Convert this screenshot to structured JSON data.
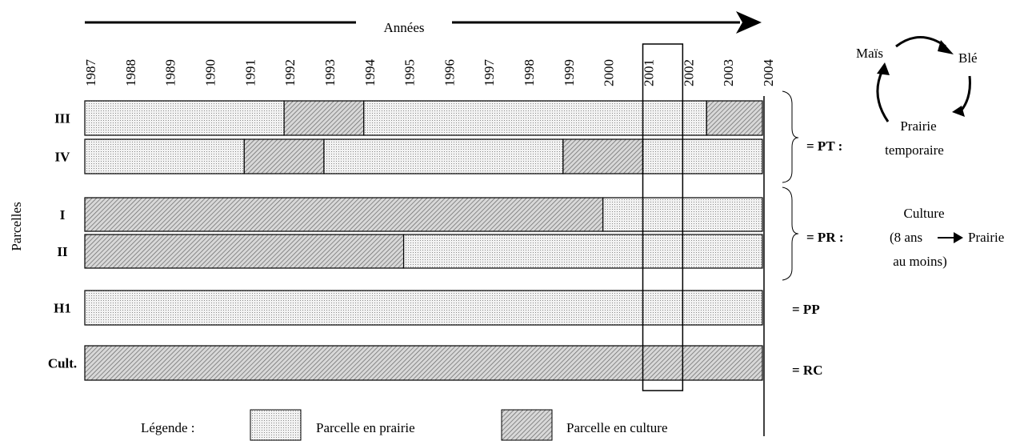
{
  "axis_title": "Années",
  "years": [
    "1987",
    "1988",
    "1989",
    "1990",
    "1991",
    "1992",
    "1993",
    "1994",
    "1995",
    "1996",
    "1997",
    "1998",
    "1999",
    "2000",
    "2001",
    "2002",
    "2003",
    "2004"
  ],
  "span": [
    1987,
    2004
  ],
  "highlight": [
    2001,
    2002
  ],
  "y_label": "Parcelles",
  "rows": [
    {
      "label": "III",
      "segments": [
        {
          "start": 1987,
          "end": 1992,
          "legend": 0
        },
        {
          "start": 1992,
          "end": 1994,
          "legend": 1
        },
        {
          "start": 1994,
          "end": 2002.6,
          "legend": 0
        },
        {
          "start": 2002.6,
          "end": 2004,
          "legend": 1
        }
      ]
    },
    {
      "label": "IV",
      "segments": [
        {
          "start": 1987,
          "end": 1991,
          "legend": 0
        },
        {
          "start": 1991,
          "end": 1993,
          "legend": 1
        },
        {
          "start": 1993,
          "end": 1999,
          "legend": 0
        },
        {
          "start": 1999,
          "end": 2001,
          "legend": 1
        },
        {
          "start": 2001,
          "end": 2004,
          "legend": 0
        }
      ]
    },
    {
      "label": "I",
      "segments": [
        {
          "start": 1987,
          "end": 2000,
          "legend": 1
        },
        {
          "start": 2000,
          "end": 2004,
          "legend": 0
        }
      ]
    },
    {
      "label": "II",
      "segments": [
        {
          "start": 1987,
          "end": 1995,
          "legend": 1
        },
        {
          "start": 1995,
          "end": 2004,
          "legend": 0
        }
      ]
    },
    {
      "label": "H1",
      "segments": [
        {
          "start": 1987,
          "end": 2004,
          "legend": 0
        }
      ]
    },
    {
      "label": "Cult.",
      "segments": [
        {
          "start": 1987,
          "end": 2004,
          "legend": 1
        }
      ]
    }
  ],
  "groups": [
    "= PT :",
    "= PR :",
    "= PP",
    "= RC"
  ],
  "cycle": {
    "mais": "Maïs",
    "ble": "Blé",
    "prairie_1": "Prairie",
    "prairie_2": "temporaire"
  },
  "pr_note": {
    "line_1": "Culture",
    "line_2": "(8 ans",
    "arrow_to": "Prairie",
    "line_3": "au moins)"
  },
  "legend": {
    "title": "Légende :",
    "items": [
      "Parcelle en prairie",
      "Parcelle en culture"
    ]
  }
}
